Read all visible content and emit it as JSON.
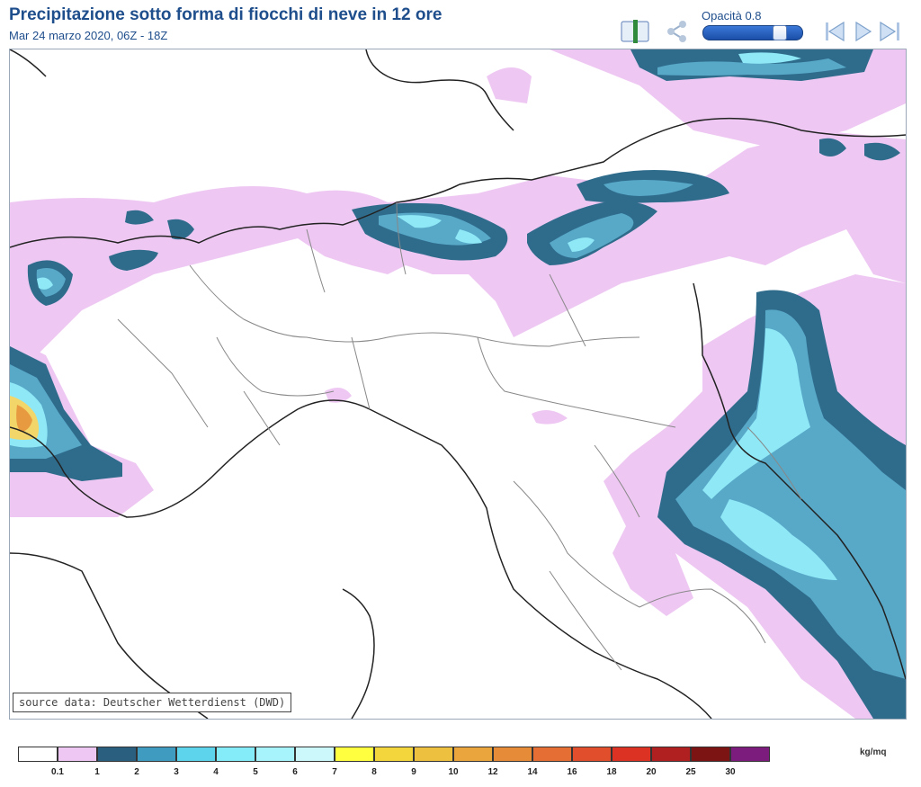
{
  "header": {
    "title": "Precipitazione sotto forma di fiocchi di neve in 12 ore",
    "subtitle": "Mar 24 marzo 2020, 06Z - 18Z"
  },
  "toolbar": {
    "icons": [
      "book-icon",
      "share-icon",
      "rewind-icon",
      "play-icon",
      "forward-icon"
    ],
    "opacity_label": "Opacità",
    "opacity_value": "0.8",
    "opacity_fraction": 0.8
  },
  "map": {
    "source_note": "source data: Deutscher Wetterdienst (DWD)",
    "colors": {
      "border_line": "#222222",
      "region_line": "#888888",
      "snow_light": "#eec8f2",
      "snow_mid": "#58a8c8",
      "snow_dark": "#2f6c8c",
      "snow_cyan": "#8ee8f6",
      "snow_yellow": "#f2d66a",
      "snow_orange": "#e89a40"
    }
  },
  "legend": {
    "units": "kg/mq",
    "colors": [
      "#ffffff",
      "#eec8f2",
      "#2a5f80",
      "#3f9bbf",
      "#5ed4ec",
      "#84ecf8",
      "#a8f4fc",
      "#ccf8fc",
      "#ffff40",
      "#f2d63c",
      "#eec040",
      "#eaa63c",
      "#e68c38",
      "#e46e34",
      "#e04e2c",
      "#dc3224",
      "#b02020",
      "#7c1414",
      "#7c1c7c"
    ],
    "ticks": [
      "0.1",
      "1",
      "2",
      "3",
      "4",
      "5",
      "6",
      "7",
      "8",
      "9",
      "10",
      "12",
      "14",
      "16",
      "18",
      "20",
      "25",
      "30"
    ]
  }
}
